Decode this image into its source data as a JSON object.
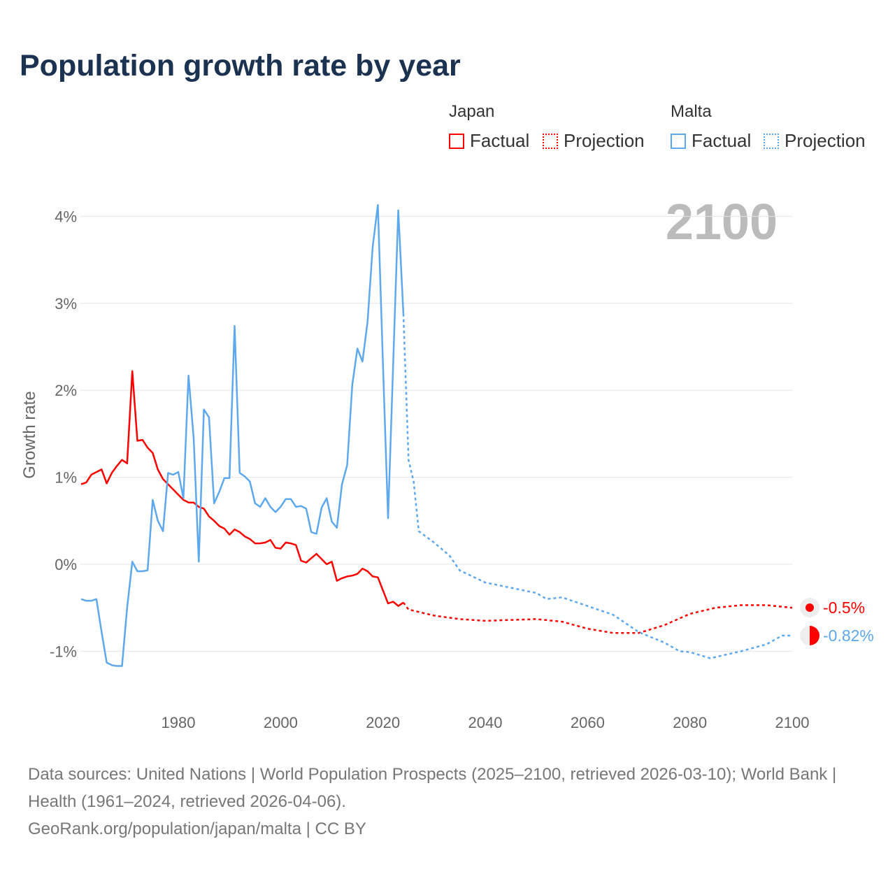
{
  "title": "Population growth rate by year",
  "legend": {
    "groups": [
      {
        "name": "Japan",
        "color": "#ff0000",
        "items": [
          "Factual",
          "Projection"
        ]
      },
      {
        "name": "Malta",
        "color": "#5ea8ee",
        "items": [
          "Factual",
          "Projection"
        ]
      }
    ]
  },
  "year_display": "2100",
  "footer": {
    "sources": "Data sources: United Nations | World Population Prospects (2025–2100, retrieved 2026-03-10); World Bank | Health (1961–2024, retrieved 2026-04-06).",
    "credit": "GeoRank.org/population/japan/malta | CC BY"
  },
  "chart_data": {
    "type": "line",
    "title": "Population growth rate by year",
    "xlabel": "",
    "ylabel": "Growth rate",
    "xlim": [
      1961,
      2100
    ],
    "ylim": [
      -1.5,
      4.3
    ],
    "xticks": [
      {
        "v": 1980,
        "label": "1980"
      },
      {
        "v": 2000,
        "label": "2000"
      },
      {
        "v": 2020,
        "label": "2020"
      },
      {
        "v": 2040,
        "label": "2040"
      },
      {
        "v": 2060,
        "label": "2060"
      },
      {
        "v": 2080,
        "label": "2080"
      },
      {
        "v": 2100,
        "label": "2100"
      }
    ],
    "yticks": [
      {
        "v": 4,
        "label": "4%"
      },
      {
        "v": 3,
        "label": "3%"
      },
      {
        "v": 2,
        "label": "2%"
      },
      {
        "v": 1,
        "label": "1%"
      },
      {
        "v": 0,
        "label": "0%"
      },
      {
        "v": -1,
        "label": "-1%"
      }
    ],
    "grid": true,
    "series": [
      {
        "name": "Japan Factual",
        "color": "#ff0000",
        "dash": false,
        "start": 1961,
        "values": [
          0.92,
          0.94,
          1.03,
          1.06,
          1.09,
          0.93,
          1.05,
          1.13,
          1.2,
          1.16,
          2.22,
          1.42,
          1.43,
          1.34,
          1.28,
          1.09,
          0.98,
          0.92,
          0.86,
          0.8,
          0.74,
          0.71,
          0.71,
          0.66,
          0.64,
          0.55,
          0.5,
          0.44,
          0.41,
          0.34,
          0.4,
          0.37,
          0.32,
          0.29,
          0.24,
          0.24,
          0.25,
          0.28,
          0.19,
          0.18,
          0.25,
          0.24,
          0.22,
          0.04,
          0.02,
          0.07,
          0.12,
          0.06,
          0.0,
          0.03,
          -0.19,
          -0.16,
          -0.14,
          -0.13,
          -0.11,
          -0.05,
          -0.08,
          -0.14,
          -0.15,
          -0.3,
          -0.45,
          -0.43,
          -0.48,
          -0.44
        ]
      },
      {
        "name": "Japan Projection",
        "color": "#ff0000",
        "dash": true,
        "points": [
          [
            2024,
            -0.44
          ],
          [
            2025,
            -0.52
          ],
          [
            2030,
            -0.59
          ],
          [
            2035,
            -0.63
          ],
          [
            2040,
            -0.65
          ],
          [
            2045,
            -0.64
          ],
          [
            2050,
            -0.63
          ],
          [
            2055,
            -0.66
          ],
          [
            2060,
            -0.74
          ],
          [
            2065,
            -0.79
          ],
          [
            2070,
            -0.79
          ],
          [
            2075,
            -0.7
          ],
          [
            2080,
            -0.57
          ],
          [
            2085,
            -0.5
          ],
          [
            2090,
            -0.47
          ],
          [
            2095,
            -0.47
          ],
          [
            2100,
            -0.5
          ]
        ]
      },
      {
        "name": "Malta Factual",
        "color": "#5ea8ee",
        "dash": false,
        "start": 1961,
        "values": [
          -0.4,
          -0.42,
          -0.42,
          -0.4,
          -0.78,
          -1.13,
          -1.16,
          -1.17,
          -1.17,
          -0.5,
          0.03,
          -0.08,
          -0.08,
          -0.07,
          0.74,
          0.5,
          0.38,
          1.05,
          1.03,
          1.06,
          0.76,
          2.17,
          1.45,
          0.03,
          1.78,
          1.69,
          0.7,
          0.83,
          0.99,
          0.99,
          2.74,
          1.05,
          1.01,
          0.95,
          0.7,
          0.66,
          0.76,
          0.66,
          0.6,
          0.66,
          0.75,
          0.75,
          0.66,
          0.67,
          0.64,
          0.37,
          0.35,
          0.65,
          0.76,
          0.49,
          0.42,
          0.92,
          1.14,
          2.06,
          2.48,
          2.33,
          2.79,
          3.65,
          4.13,
          2.3,
          0.53,
          2.3,
          4.07,
          2.88
        ]
      },
      {
        "name": "Malta Projection",
        "color": "#5ea8ee",
        "dash": true,
        "points": [
          [
            2024,
            2.88
          ],
          [
            2025,
            1.2
          ],
          [
            2026,
            0.95
          ],
          [
            2027,
            0.38
          ],
          [
            2030,
            0.25
          ],
          [
            2033,
            0.1
          ],
          [
            2035,
            -0.07
          ],
          [
            2040,
            -0.21
          ],
          [
            2045,
            -0.27
          ],
          [
            2050,
            -0.33
          ],
          [
            2052,
            -0.4
          ],
          [
            2055,
            -0.38
          ],
          [
            2060,
            -0.48
          ],
          [
            2065,
            -0.58
          ],
          [
            2070,
            -0.78
          ],
          [
            2075,
            -0.9
          ],
          [
            2078,
            -1.0
          ],
          [
            2080,
            -1.01
          ],
          [
            2084,
            -1.08
          ],
          [
            2090,
            -1.0
          ],
          [
            2095,
            -0.92
          ],
          [
            2098,
            -0.82
          ],
          [
            2100,
            -0.82
          ]
        ]
      }
    ],
    "end_labels": [
      {
        "series": "Japan",
        "value": -0.5,
        "label": "-0.5%",
        "color": "#ff0000"
      },
      {
        "series": "Malta",
        "value": -0.82,
        "label": "-0.82%",
        "color": "#5ea8ee"
      }
    ]
  }
}
